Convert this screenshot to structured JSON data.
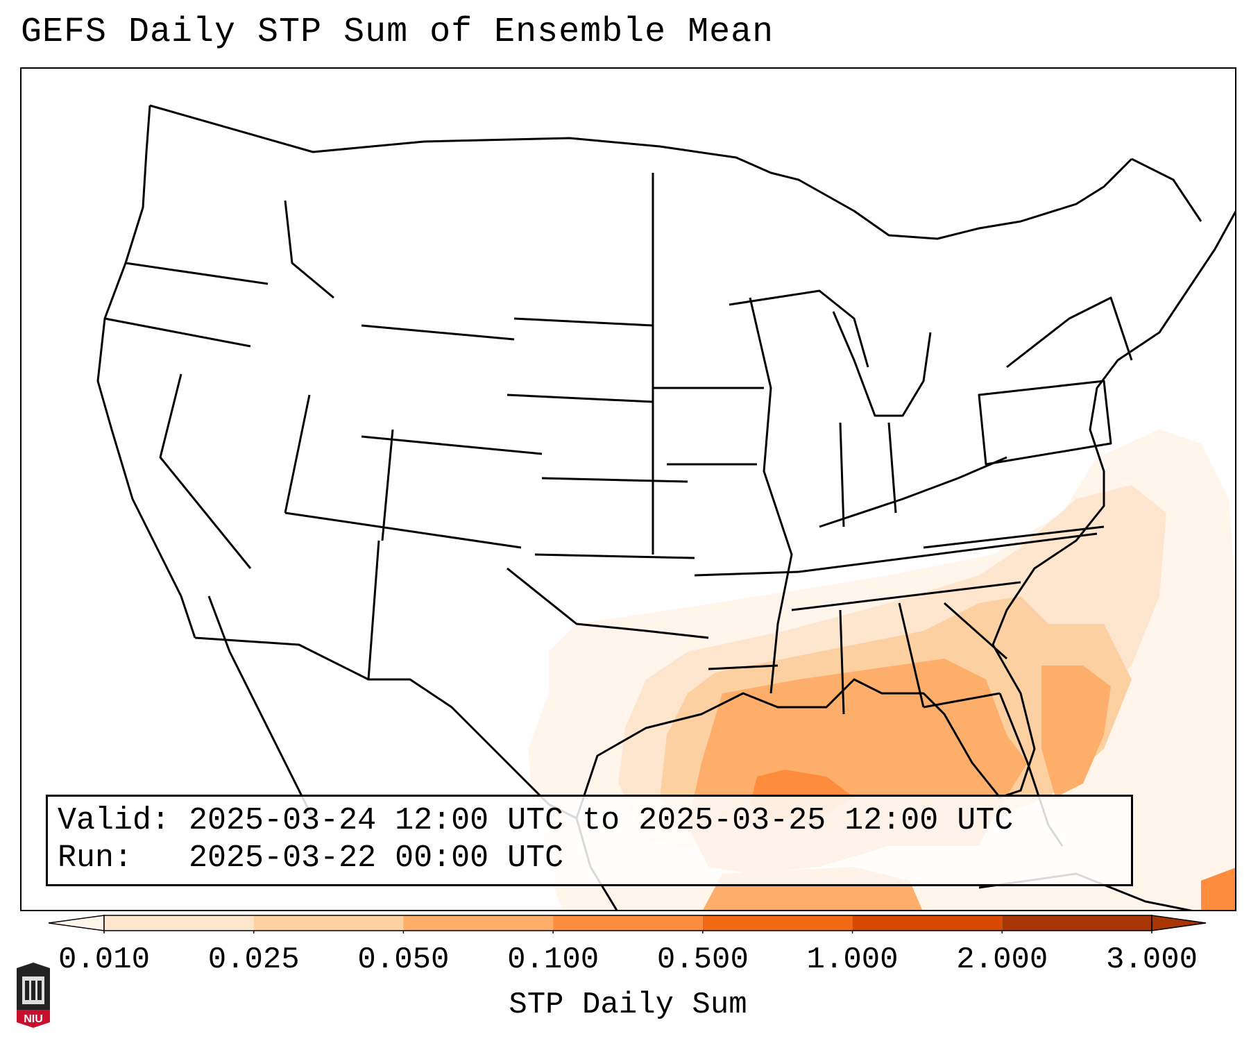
{
  "title": "GEFS Daily STP Sum of Ensemble Mean",
  "info": {
    "valid_label": "Valid:",
    "valid_value": "2025-03-24 12:00 UTC to 2025-03-25 12:00 UTC",
    "run_label": "Run:",
    "run_value": "2025-03-22 00:00 UTC"
  },
  "colorbar": {
    "label": "STP Daily Sum",
    "ticks": [
      "0.010",
      "0.025",
      "0.050",
      "0.100",
      "0.500",
      "1.000",
      "2.000",
      "3.000"
    ],
    "colors": [
      "#fff5eb",
      "#fee6ce",
      "#fdd0a2",
      "#fdae6b",
      "#fd8d3c",
      "#f16913",
      "#d94801",
      "#a63603"
    ],
    "extend": "both"
  },
  "map": {
    "region": "CONUS",
    "shading_colors": {
      "very_light": "#fff5eb",
      "light": "#fee6ce",
      "medium": "#fdd0a2",
      "orange": "#fdae6b",
      "dark_orange": "#fd8d3c"
    }
  },
  "logo": {
    "text": "NIU"
  }
}
